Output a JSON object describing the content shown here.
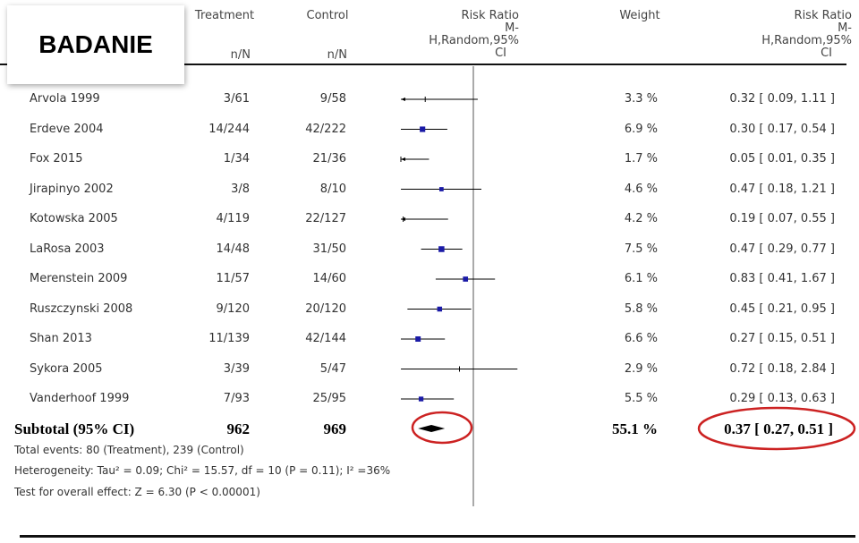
{
  "header": {
    "badge": "BADANIE",
    "treatment_label": "Treatment",
    "treatment_sub": "n/N",
    "control_label": "Control",
    "control_sub": "n/N",
    "rr_line1": "Risk Ratio",
    "rr_line2": "M-",
    "rr_line3": "H,Random,95%",
    "rr_line4": "CI",
    "weight_label": "Weight",
    "rr2_line1": "Risk Ratio",
    "rr2_line2": "M-",
    "rr2_line3": "H,Random,95%",
    "rr2_line4": "CI"
  },
  "chart_data": {
    "type": "forest",
    "axis": {
      "scale": "log",
      "null_line": 1
    },
    "studies": [
      {
        "name": "Arvola 1999",
        "treatment": "3/61",
        "control": "9/58",
        "rr": 0.32,
        "lo": 0.09,
        "hi": 1.11,
        "weight": "3.3 %",
        "ci_text": "0.32 [ 0.09, 1.11 ]",
        "weight_pct": 3.3,
        "arrow_left": true
      },
      {
        "name": "Erdeve 2004",
        "treatment": "14/244",
        "control": "42/222",
        "rr": 0.3,
        "lo": 0.17,
        "hi": 0.54,
        "weight": "6.9 %",
        "ci_text": "0.30 [ 0.17, 0.54 ]",
        "weight_pct": 6.9,
        "arrow_left": false
      },
      {
        "name": "Fox 2015",
        "treatment": "1/34",
        "control": "21/36",
        "rr": 0.05,
        "lo": 0.01,
        "hi": 0.35,
        "weight": "1.7 %",
        "ci_text": "0.05 [ 0.01, 0.35 ]",
        "weight_pct": 1.7,
        "arrow_left": true
      },
      {
        "name": "Jirapinyo 2002",
        "treatment": "3/8",
        "control": "8/10",
        "rr": 0.47,
        "lo": 0.18,
        "hi": 1.21,
        "weight": "4.6 %",
        "ci_text": "0.47 [ 0.18, 1.21 ]",
        "weight_pct": 4.6,
        "arrow_left": false
      },
      {
        "name": "Kotowska 2005",
        "treatment": "4/119",
        "control": "22/127",
        "rr": 0.19,
        "lo": 0.07,
        "hi": 0.55,
        "weight": "4.2 %",
        "ci_text": "0.19 [ 0.07, 0.55 ]",
        "weight_pct": 4.2,
        "arrow_left": true
      },
      {
        "name": "LaRosa 2003",
        "treatment": "14/48",
        "control": "31/50",
        "rr": 0.47,
        "lo": 0.29,
        "hi": 0.77,
        "weight": "7.5 %",
        "ci_text": "0.47 [ 0.29, 0.77 ]",
        "weight_pct": 7.5,
        "arrow_left": false
      },
      {
        "name": "Merenstein 2009",
        "treatment": "11/57",
        "control": "14/60",
        "rr": 0.83,
        "lo": 0.41,
        "hi": 1.67,
        "weight": "6.1 %",
        "ci_text": "0.83 [ 0.41, 1.67 ]",
        "weight_pct": 6.1,
        "arrow_left": false
      },
      {
        "name": "Ruszczynski 2008",
        "treatment": "9/120",
        "control": "20/120",
        "rr": 0.45,
        "lo": 0.21,
        "hi": 0.95,
        "weight": "5.8 %",
        "ci_text": "0.45 [ 0.21, 0.95 ]",
        "weight_pct": 5.8,
        "arrow_left": false
      },
      {
        "name": "Shan 2013",
        "treatment": "11/139",
        "control": "42/144",
        "rr": 0.27,
        "lo": 0.15,
        "hi": 0.51,
        "weight": "6.6 %",
        "ci_text": "0.27 [ 0.15, 0.51 ]",
        "weight_pct": 6.6,
        "arrow_left": false
      },
      {
        "name": "Sykora 2005",
        "treatment": "3/39",
        "control": "5/47",
        "rr": 0.72,
        "lo": 0.18,
        "hi": 2.84,
        "weight": "2.9 %",
        "ci_text": "0.72 [ 0.18, 2.84 ]",
        "weight_pct": 2.9,
        "arrow_left": false
      },
      {
        "name": "Vanderhoof 1999",
        "treatment": "7/93",
        "control": "25/95",
        "rr": 0.29,
        "lo": 0.13,
        "hi": 0.63,
        "weight": "5.5 %",
        "ci_text": "0.29 [ 0.13, 0.63 ]",
        "weight_pct": 5.5,
        "arrow_left": false
      }
    ],
    "subtotal": {
      "label": "Subtotal (95% CI)",
      "treatment_total": "962",
      "control_total": "969",
      "weight": "55.1 %",
      "ci_text": "0.37 [ 0.27, 0.51 ]",
      "rr": 0.37,
      "lo": 0.27,
      "hi": 0.51
    },
    "footer": {
      "events": "Total events: 80 (Treatment), 239 (Control)",
      "heterogeneity": "Heterogeneity: Tau² = 0.09; Chi² = 15.57, df = 10 (P = 0.11); I² =36%",
      "overall": "Test for overall effect: Z = 6.30 (P < 0.00001)"
    },
    "colors": {
      "marker": "#1a1aa6",
      "line": "#000000",
      "highlight": "#cc2222"
    }
  }
}
